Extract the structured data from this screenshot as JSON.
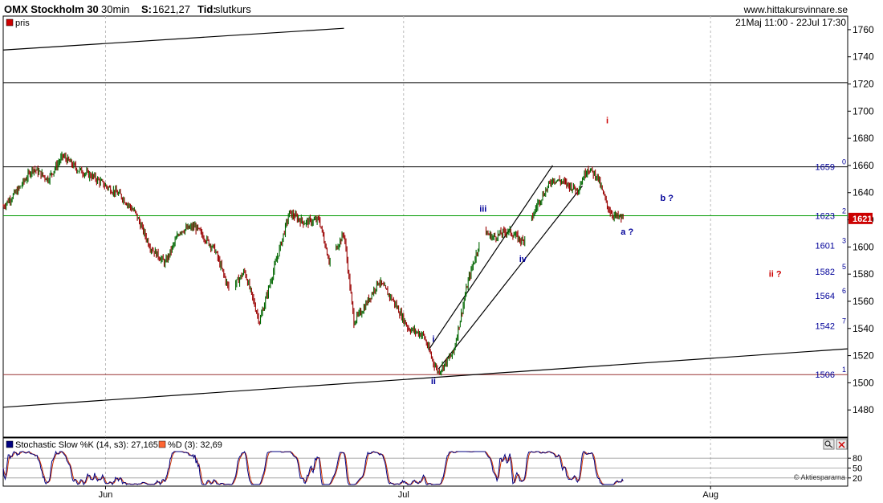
{
  "header": {
    "instrument": "OMX Stockholm 30",
    "interval": "30min",
    "last_label": "S:",
    "last_value": "1621,27",
    "type_label": "Tid:",
    "type_value": "slutkurs",
    "site": "www.hittakursvinnare.se",
    "date_range": "21Maj 11:00 - 22Jul 17:30"
  },
  "legend": {
    "price_label": "pris",
    "price_color": "#cc0000",
    "stoch_k_label": "Stochastic Slow %K (14, s3): 27,165",
    "stoch_k_color": "#000080",
    "stoch_d_label": "%D (3): 32,69",
    "stoch_d_color": "#cc3300"
  },
  "price_axis": {
    "min": 1460,
    "max": 1770,
    "ticks": [
      "1760",
      "1740",
      "1720",
      "1700",
      "1680",
      "1660",
      "1640",
      "1620",
      "1600",
      "1580",
      "1560",
      "1540",
      "1520",
      "1500",
      "1480"
    ]
  },
  "current_price_tag": "1621",
  "fib_levels": [
    {
      "id": "0",
      "price": 1659,
      "label": "1659"
    },
    {
      "id": "2",
      "price": 1623,
      "label": "1623"
    },
    {
      "id": "3",
      "price": 1601,
      "label": "1601"
    },
    {
      "id": "5",
      "price": 1582,
      "label": "1582"
    },
    {
      "id": "6",
      "price": 1564,
      "label": "1564"
    },
    {
      "id": "7",
      "price": 1542,
      "label": "1542"
    },
    {
      "id": "1",
      "price": 1506,
      "label": "1506"
    }
  ],
  "wave_labels": [
    {
      "text": "i",
      "color": "#cc0000",
      "x_days": 60.8,
      "y": 1691
    },
    {
      "text": "iii",
      "color": "#000099",
      "x_days": 48.3,
      "y": 1626
    },
    {
      "text": "iv",
      "color": "#000099",
      "x_days": 52.3,
      "y": 1589
    },
    {
      "text": "i",
      "color": "#000099",
      "x_days": 43.3,
      "y": 1530
    },
    {
      "text": "ii",
      "color": "#000099",
      "x_days": 43.3,
      "y": 1499
    },
    {
      "text": "a ?",
      "color": "#000099",
      "x_days": 62.8,
      "y": 1609
    },
    {
      "text": "b ?",
      "color": "#000099",
      "x_days": 66.8,
      "y": 1634
    },
    {
      "text": "ii ?",
      "color": "#cc0000",
      "x_days": 77.7,
      "y": 1578
    }
  ],
  "stoch_axis": {
    "ticks": [
      "80",
      "50",
      "20"
    ],
    "copyright": "© Aktiespararna"
  },
  "x_axis": {
    "labels": [
      {
        "text": "Jun",
        "x_days": 10.3
      },
      {
        "text": "Jul",
        "x_days": 40.3
      },
      {
        "text": "Aug",
        "x_days": 71.2
      }
    ]
  },
  "chart_data": {
    "type": "line",
    "title": "OMX Stockholm 30",
    "x_start": "2012-05-21",
    "x_unit": "days",
    "xlim": [
      0,
      85
    ],
    "ylim": [
      1460,
      1770
    ],
    "price_series": {
      "name": "pris",
      "x": [
        0,
        1.5,
        3,
        4.5,
        6,
        7.5,
        9,
        10.3,
        11.8,
        13.3,
        14.8,
        16.3,
        17.8,
        19.3,
        21.3,
        22.8,
        24.3,
        25.8,
        27.3,
        28.8,
        30.3,
        31.8,
        32.8,
        34.3,
        35.3,
        36.3,
        37.8,
        39.3,
        40.8,
        42.3,
        43.3,
        43.8,
        45.3,
        46.8,
        48.3,
        49.3,
        50.8,
        52.3,
        53.8,
        55.3,
        56.3,
        57.8,
        58.8,
        59.8,
        60.3,
        60.8,
        61.3,
        61.8,
        62.4
      ],
      "y": [
        1630,
        1642,
        1658,
        1650,
        1667,
        1657,
        1652,
        1645,
        1638,
        1625,
        1600,
        1588,
        1612,
        1615,
        1598,
        1567,
        1582,
        1545,
        1585,
        1625,
        1618,
        1620,
        1590,
        1610,
        1545,
        1555,
        1575,
        1560,
        1540,
        1535,
        1515,
        1508,
        1522,
        1575,
        1612,
        1607,
        1612,
        1604,
        1632,
        1650,
        1648,
        1642,
        1658,
        1652,
        1641,
        1630,
        1624,
        1622,
        1621
      ]
    },
    "trendlines": [
      {
        "x": [
          0,
          34.3
        ],
        "y": [
          1745,
          1761
        ]
      },
      {
        "x": [
          0,
          85
        ],
        "y": [
          1482,
          1525
        ]
      },
      {
        "x": [
          42.8,
          55.3
        ],
        "y": [
          1524,
          1660
        ]
      },
      {
        "x": [
          43.8,
          58.3
        ],
        "y": [
          1510,
          1645
        ]
      }
    ],
    "horizontal_lines": [
      {
        "y": 1721,
        "color": "#000000"
      },
      {
        "y": 1659,
        "color": "#000000"
      },
      {
        "y": 1623,
        "color": "#009900"
      },
      {
        "y": 1506,
        "color": "#993333"
      }
    ],
    "stochastic": {
      "k_name": "Stochastic Slow %K (14, s3)",
      "k_last": 27.165,
      "d_name": "%D (3)",
      "d_last": 32.69,
      "ylim": [
        0,
        100
      ],
      "levels": [
        20,
        50,
        80
      ]
    }
  }
}
